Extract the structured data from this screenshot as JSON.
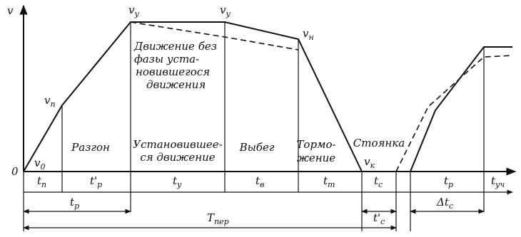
{
  "axes": {
    "y_label": "v",
    "origin": "0"
  },
  "speed_labels": [
    {
      "main": "v",
      "sub": "0"
    },
    {
      "main": "v",
      "sub": "п"
    },
    {
      "main": "v",
      "sub": "у"
    },
    {
      "main": "v",
      "sub": "у"
    },
    {
      "main": "v",
      "sub": "н"
    },
    {
      "main": "v",
      "sub": "к"
    }
  ],
  "phases": [
    [
      "Разгон"
    ],
    [
      "Установившее-",
      "ся движение"
    ],
    [
      "Выбег"
    ],
    [
      "Тормо-",
      "жение"
    ],
    [
      "Стоянка"
    ]
  ],
  "note": [
    "Движение без",
    "фазы уста-",
    "новившегося",
    "движения"
  ],
  "intervals": [
    {
      "main": "t",
      "sub": "п"
    },
    {
      "main": "t'",
      "sub": "р"
    },
    {
      "main": "t",
      "sub": "у"
    },
    {
      "main": "t",
      "sub": "в"
    },
    {
      "main": "t",
      "sub": "т"
    },
    {
      "main": "t",
      "sub": "с"
    },
    {
      "main": "t",
      "sub": "р"
    },
    {
      "main": "t",
      "sub": "уч"
    }
  ],
  "spans": [
    {
      "main": "t",
      "sub": "р"
    },
    {
      "main": "T",
      "sub": "пер"
    },
    {
      "main": "t'",
      "sub": "с"
    },
    {
      "main": "Δt",
      "sub": "с"
    }
  ]
}
